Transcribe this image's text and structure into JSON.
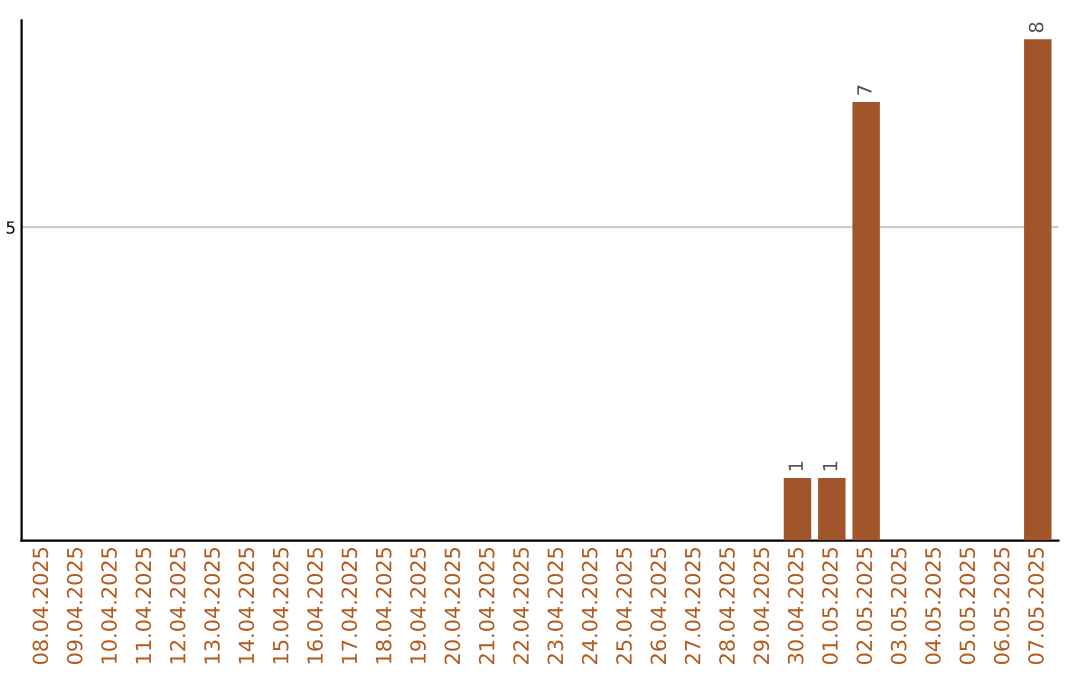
{
  "chart_data": {
    "type": "bar",
    "categories": [
      "08.04.2025",
      "09.04.2025",
      "10.04.2025",
      "11.04.2025",
      "12.04.2025",
      "13.04.2025",
      "14.04.2025",
      "15.04.2025",
      "16.04.2025",
      "17.04.2025",
      "18.04.2025",
      "19.04.2025",
      "20.04.2025",
      "21.04.2025",
      "22.04.2025",
      "23.04.2025",
      "24.04.2025",
      "25.04.2025",
      "26.04.2025",
      "27.04.2025",
      "28.04.2025",
      "29.04.2025",
      "30.04.2025",
      "01.05.2025",
      "02.05.2025",
      "03.05.2025",
      "04.05.2025",
      "05.05.2025",
      "06.05.2025",
      "07.05.2025"
    ],
    "values": [
      null,
      null,
      null,
      null,
      null,
      null,
      null,
      null,
      null,
      null,
      null,
      null,
      null,
      null,
      null,
      null,
      null,
      null,
      null,
      null,
      null,
      null,
      1,
      1,
      7,
      null,
      null,
      null,
      null,
      8
    ],
    "value_labels": [
      null,
      null,
      null,
      null,
      null,
      null,
      null,
      null,
      null,
      null,
      null,
      null,
      null,
      null,
      null,
      null,
      null,
      null,
      null,
      null,
      null,
      null,
      "1",
      "1",
      "7",
      null,
      null,
      null,
      null,
      "8"
    ],
    "color": "#a0552a",
    "ylim": [
      0,
      8.3
    ],
    "yticks": [
      5
    ],
    "grid": "y"
  }
}
